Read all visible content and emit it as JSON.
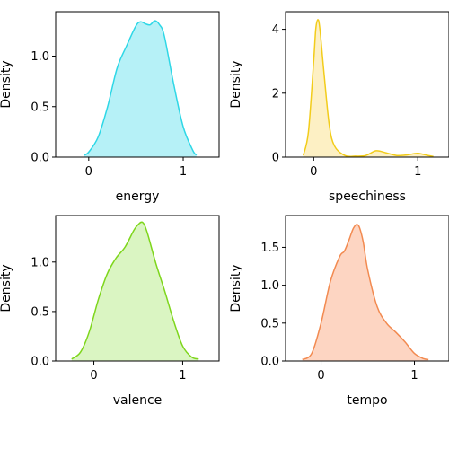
{
  "chart_data": [
    {
      "type": "area",
      "xlabel": "energy",
      "ylabel": "Density",
      "xlim": [
        -0.35,
        1.38
      ],
      "ylim": [
        0,
        1.44
      ],
      "xticks": [
        0,
        1
      ],
      "xtick_labels": [
        "0",
        "1"
      ],
      "yticks": [
        0,
        0.5,
        1.0
      ],
      "ytick_labels": [
        "0.0",
        "0.5",
        "1.0"
      ],
      "color": "#2ed7e6",
      "fill": "#b6f1f7",
      "x": [
        -0.05,
        0.0,
        0.1,
        0.2,
        0.3,
        0.4,
        0.5,
        0.55,
        0.6,
        0.65,
        0.7,
        0.75,
        0.8,
        0.9,
        1.0,
        1.1,
        1.14
      ],
      "y": [
        0.02,
        0.05,
        0.2,
        0.5,
        0.88,
        1.1,
        1.3,
        1.34,
        1.32,
        1.31,
        1.35,
        1.31,
        1.2,
        0.72,
        0.3,
        0.07,
        0.02
      ]
    },
    {
      "type": "area",
      "xlabel": "speechiness",
      "ylabel": "Density",
      "xlim": [
        -0.27,
        1.3
      ],
      "ylim": [
        0,
        4.55
      ],
      "xticks": [
        0,
        1
      ],
      "xtick_labels": [
        "0",
        "1"
      ],
      "yticks": [
        0,
        2,
        4
      ],
      "ytick_labels": [
        "0",
        "2",
        "4"
      ],
      "color": "#f2cc1a",
      "fill": "#fdf0c4",
      "x": [
        -0.1,
        -0.05,
        0.0,
        0.02,
        0.04,
        0.06,
        0.1,
        0.15,
        0.2,
        0.3,
        0.4,
        0.5,
        0.6,
        0.7,
        0.8,
        0.9,
        1.0,
        1.1,
        1.15
      ],
      "y": [
        0.05,
        0.8,
        3.0,
        4.0,
        4.3,
        4.0,
        2.6,
        1.0,
        0.35,
        0.05,
        0.03,
        0.05,
        0.2,
        0.13,
        0.05,
        0.07,
        0.12,
        0.05,
        0.02
      ]
    },
    {
      "type": "area",
      "xlabel": "valence",
      "ylabel": "Density",
      "xlim": [
        -0.43,
        1.41
      ],
      "ylim": [
        0,
        1.47
      ],
      "xticks": [
        0,
        1
      ],
      "xtick_labels": [
        "0",
        "1"
      ],
      "yticks": [
        0,
        0.5,
        1.0
      ],
      "ytick_labels": [
        "0.0",
        "0.5",
        "1.0"
      ],
      "color": "#7ed61c",
      "fill": "#daf5c2",
      "x": [
        -0.25,
        -0.15,
        -0.05,
        0.05,
        0.15,
        0.25,
        0.35,
        0.45,
        0.5,
        0.55,
        0.6,
        0.7,
        0.8,
        0.9,
        1.0,
        1.1,
        1.18
      ],
      "y": [
        0.02,
        0.09,
        0.3,
        0.62,
        0.88,
        1.04,
        1.15,
        1.32,
        1.38,
        1.4,
        1.3,
        0.98,
        0.7,
        0.4,
        0.15,
        0.04,
        0.02
      ]
    },
    {
      "type": "area",
      "xlabel": "tempo",
      "ylabel": "Density",
      "xlim": [
        -0.38,
        1.37
      ],
      "ylim": [
        0,
        1.92
      ],
      "xticks": [
        0,
        1
      ],
      "xtick_labels": [
        "0",
        "1"
      ],
      "yticks": [
        0,
        0.5,
        1.0,
        1.5
      ],
      "ytick_labels": [
        "0.0",
        "0.5",
        "1.0",
        "1.5"
      ],
      "color": "#f28a50",
      "fill": "#fdd5c2",
      "x": [
        -0.2,
        -0.1,
        0.0,
        0.1,
        0.2,
        0.25,
        0.3,
        0.35,
        0.4,
        0.45,
        0.5,
        0.6,
        0.7,
        0.8,
        0.9,
        1.0,
        1.1,
        1.15
      ],
      "y": [
        0.02,
        0.1,
        0.5,
        1.05,
        1.38,
        1.45,
        1.6,
        1.76,
        1.79,
        1.58,
        1.2,
        0.72,
        0.5,
        0.38,
        0.25,
        0.1,
        0.03,
        0.02
      ]
    }
  ]
}
